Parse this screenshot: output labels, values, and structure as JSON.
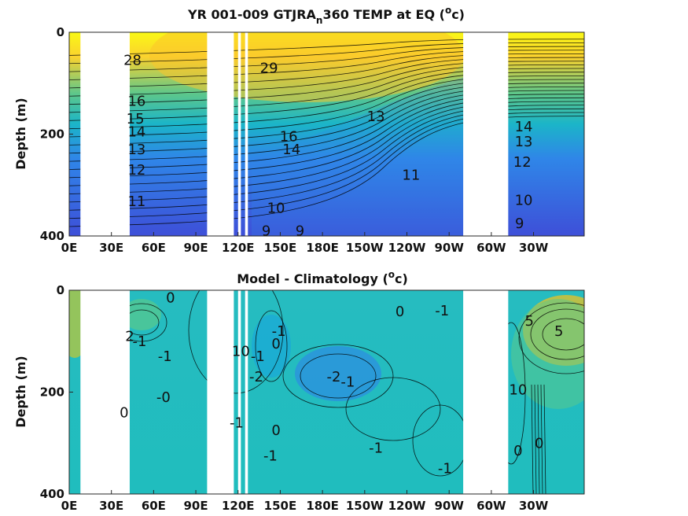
{
  "chart_data": [
    {
      "type": "heatmap",
      "title": {
        "main": "YR 001-009 GTJRA",
        "sub": "n",
        "rest": "360 TEMP at EQ (",
        "sup": "o",
        "unit": "c)"
      },
      "ylabel": "Depth (m)",
      "ylim": [
        400,
        0
      ],
      "yticks": [
        "0",
        "200",
        "400"
      ],
      "xticks": [
        "0E",
        "30E",
        "60E",
        "90E",
        "120E",
        "150E",
        "180E",
        "150W",
        "120W",
        "90W",
        "60W",
        "30W"
      ],
      "colormap": [
        "#3e4fd8",
        "#2f86e8",
        "#1bb5c8",
        "#5ec78a",
        "#c4c23a",
        "#fbd22e",
        "#f9f816"
      ],
      "land_gaps_lon": [
        [
          8,
          43
        ],
        [
          98,
          117
        ],
        [
          120,
          122
        ],
        [
          125,
          127
        ],
        [
          280,
          312
        ]
      ],
      "contour_labels": [
        {
          "text": "28",
          "lon": 45,
          "depth": 55
        },
        {
          "text": "16",
          "lon": 48,
          "depth": 135
        },
        {
          "text": "15",
          "lon": 47,
          "depth": 170
        },
        {
          "text": "14",
          "lon": 48,
          "depth": 195
        },
        {
          "text": "13",
          "lon": 48,
          "depth": 230
        },
        {
          "text": "12",
          "lon": 48,
          "depth": 270
        },
        {
          "text": "11",
          "lon": 48,
          "depth": 332
        },
        {
          "text": "29",
          "lon": 142,
          "depth": 70
        },
        {
          "text": "16",
          "lon": 156,
          "depth": 205
        },
        {
          "text": "14",
          "lon": 158,
          "depth": 230
        },
        {
          "text": "10",
          "lon": 147,
          "depth": 345
        },
        {
          "text": "9",
          "lon": 140,
          "depth": 390
        },
        {
          "text": "9",
          "lon": 164,
          "depth": 390
        },
        {
          "text": "13",
          "lon": 218,
          "depth": 165
        },
        {
          "text": "11",
          "lon": 243,
          "depth": 280
        },
        {
          "text": "14",
          "lon": 323,
          "depth": 185
        },
        {
          "text": "13",
          "lon": 323,
          "depth": 215
        },
        {
          "text": "12",
          "lon": 322,
          "depth": 255
        },
        {
          "text": "10",
          "lon": 323,
          "depth": 330
        },
        {
          "text": "9",
          "lon": 320,
          "depth": 375
        }
      ]
    },
    {
      "type": "heatmap",
      "title": {
        "main": "Model - Climatology (",
        "sup": "o",
        "unit": "c)"
      },
      "ylabel": "Depth (m)",
      "ylim": [
        400,
        0
      ],
      "yticks": [
        "0",
        "200",
        "400"
      ],
      "xticks": [
        "0E",
        "30E",
        "60E",
        "90E",
        "120E",
        "150E",
        "180E",
        "150W",
        "120W",
        "90W",
        "60W",
        "30W"
      ],
      "colormap": [
        "#2c8fe0",
        "#1aa8d8",
        "#20bdbe",
        "#59c98c",
        "#a8c54a",
        "#e0c02a"
      ],
      "land_gaps_lon": [
        [
          8,
          43
        ],
        [
          98,
          117
        ],
        [
          120,
          122
        ],
        [
          125,
          127
        ],
        [
          280,
          312
        ]
      ],
      "contour_labels": [
        {
          "text": "0",
          "lon": 72,
          "depth": 15
        },
        {
          "text": "2",
          "lon": 43,
          "depth": 90
        },
        {
          "text": "-1",
          "lon": 50,
          "depth": 100
        },
        {
          "text": "-1",
          "lon": 68,
          "depth": 130
        },
        {
          "text": "0",
          "lon": 39,
          "depth": 240
        },
        {
          "text": "-0",
          "lon": 67,
          "depth": 210
        },
        {
          "text": "10",
          "lon": 122,
          "depth": 120
        },
        {
          "text": "-1",
          "lon": 134,
          "depth": 130
        },
        {
          "text": "-2",
          "lon": 133,
          "depth": 170
        },
        {
          "text": "-1",
          "lon": 119,
          "depth": 260
        },
        {
          "text": "-1",
          "lon": 149,
          "depth": 80
        },
        {
          "text": "0",
          "lon": 147,
          "depth": 105
        },
        {
          "text": "-2",
          "lon": 188,
          "depth": 170
        },
        {
          "text": "-1",
          "lon": 198,
          "depth": 180
        },
        {
          "text": "0",
          "lon": 147,
          "depth": 275
        },
        {
          "text": "-1",
          "lon": 143,
          "depth": 325
        },
        {
          "text": "-1",
          "lon": 218,
          "depth": 310
        },
        {
          "text": "0",
          "lon": 235,
          "depth": 42
        },
        {
          "text": "-1",
          "lon": 265,
          "depth": 40
        },
        {
          "text": "-1",
          "lon": 267,
          "depth": 350
        },
        {
          "text": "5",
          "lon": 327,
          "depth": 60
        },
        {
          "text": "5",
          "lon": 348,
          "depth": 80
        },
        {
          "text": "10",
          "lon": 319,
          "depth": 195
        },
        {
          "text": "0",
          "lon": 319,
          "depth": 315
        },
        {
          "text": "0",
          "lon": 334,
          "depth": 300
        }
      ]
    }
  ]
}
